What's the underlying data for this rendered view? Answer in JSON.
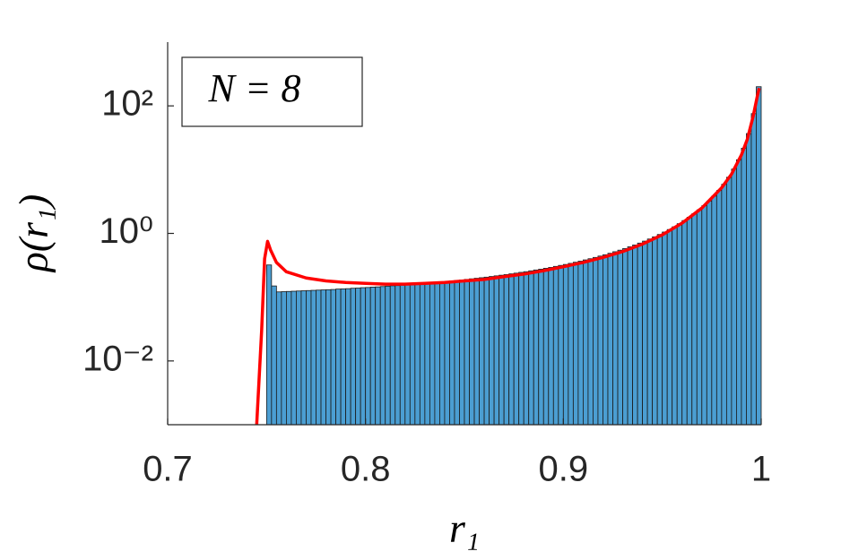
{
  "chart_data": {
    "type": "histogram",
    "xlabel": "r₁",
    "ylabel": "ρ(r₁)",
    "annotation": "N = 8",
    "xlim": [
      0.7,
      1
    ],
    "xticks": [
      0.7,
      0.8,
      0.9,
      1
    ],
    "ylim": [
      0.001,
      1000
    ],
    "yscale": "log",
    "yticks": [
      {
        "value": 0.01,
        "label": "10⁻²"
      },
      {
        "value": 1,
        "label": "10⁰"
      },
      {
        "value": 100,
        "label": "10²"
      }
    ],
    "color": "#4b9ed2",
    "edgecolor": "#1a1a1a",
    "bins": [
      0.75,
      0.7525,
      0.755,
      0.7575,
      0.76,
      0.7625,
      0.765,
      0.7675,
      0.77,
      0.7725,
      0.775,
      0.7775,
      0.78,
      0.7825,
      0.785,
      0.7875,
      0.79,
      0.7925,
      0.795,
      0.7975,
      0.8,
      0.8025,
      0.805,
      0.8075,
      0.81,
      0.8125,
      0.815,
      0.8175,
      0.82,
      0.8225,
      0.825,
      0.8275,
      0.83,
      0.8325,
      0.835,
      0.8375,
      0.84,
      0.8425,
      0.845,
      0.8475,
      0.85,
      0.8525,
      0.855,
      0.8575,
      0.86,
      0.8625,
      0.865,
      0.8675,
      0.87,
      0.8725,
      0.875,
      0.8775,
      0.88,
      0.8825,
      0.885,
      0.8875,
      0.89,
      0.8925,
      0.895,
      0.8975,
      0.9,
      0.9025,
      0.905,
      0.9075,
      0.91,
      0.9125,
      0.915,
      0.9175,
      0.92,
      0.9225,
      0.925,
      0.9275,
      0.93,
      0.9325,
      0.935,
      0.9375,
      0.94,
      0.9425,
      0.945,
      0.9475,
      0.95,
      0.9525,
      0.955,
      0.9575,
      0.96,
      0.9625,
      0.965,
      0.9675,
      0.97,
      0.9725,
      0.975,
      0.9775,
      0.98,
      0.9825,
      0.985,
      0.9875,
      0.99,
      0.9925,
      0.995,
      0.9975,
      1
    ],
    "values": [
      0.32,
      0.15,
      0.121,
      0.122,
      0.123,
      0.124,
      0.125,
      0.126,
      0.127,
      0.128,
      0.129,
      0.13,
      0.131,
      0.132,
      0.134,
      0.135,
      0.136,
      0.138,
      0.139,
      0.141,
      0.142,
      0.144,
      0.145,
      0.147,
      0.149,
      0.151,
      0.152,
      0.154,
      0.157,
      0.159,
      0.161,
      0.163,
      0.166,
      0.168,
      0.171,
      0.174,
      0.177,
      0.18,
      0.183,
      0.186,
      0.19,
      0.194,
      0.198,
      0.202,
      0.206,
      0.211,
      0.216,
      0.221,
      0.226,
      0.232,
      0.238,
      0.245,
      0.251,
      0.259,
      0.267,
      0.275,
      0.284,
      0.293,
      0.304,
      0.315,
      0.326,
      0.339,
      0.353,
      0.367,
      0.384,
      0.401,
      0.42,
      0.441,
      0.463,
      0.488,
      0.516,
      0.546,
      0.579,
      0.617,
      0.658,
      0.705,
      0.757,
      0.817,
      0.884,
      0.962,
      1.05,
      1.15,
      1.27,
      1.42,
      1.59,
      1.79,
      2.04,
      2.34,
      2.72,
      3.21,
      3.85,
      4.71,
      5.89,
      7.59,
      10.2,
      14.3,
      21.7,
      36.8,
      75.7,
      200
    ],
    "curve": {
      "color": "#ff0000",
      "x": [
        0.745,
        0.7475,
        0.749,
        0.7505,
        0.752,
        0.755,
        0.76,
        0.77,
        0.78,
        0.79,
        0.8,
        0.81,
        0.82,
        0.83,
        0.84,
        0.85,
        0.86,
        0.87,
        0.88,
        0.89,
        0.9,
        0.91,
        0.92,
        0.93,
        0.94,
        0.95,
        0.96,
        0.97,
        0.98,
        0.985,
        0.99,
        0.993,
        0.996,
        0.998,
        0.999
      ],
      "values": [
        0.001,
        0.03,
        0.4,
        0.75,
        0.55,
        0.35,
        0.25,
        0.2,
        0.18,
        0.17,
        0.165,
        0.16,
        0.16,
        0.165,
        0.17,
        0.18,
        0.19,
        0.21,
        0.23,
        0.26,
        0.3,
        0.35,
        0.42,
        0.52,
        0.68,
        0.95,
        1.45,
        2.5,
        5.2,
        8.5,
        17,
        30,
        70,
        140,
        190
      ]
    }
  }
}
